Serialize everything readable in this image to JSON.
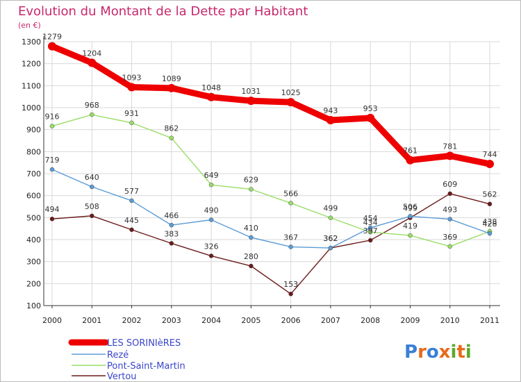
{
  "chart_data": {
    "type": "line",
    "title": "Evolution du Montant de la Dette par Habitant",
    "subtitle": "(en €)",
    "categories": [
      "2000",
      "2001",
      "2002",
      "2003",
      "2004",
      "2005",
      "2006",
      "2007",
      "2008",
      "2009",
      "2010",
      "2011"
    ],
    "ylim": [
      100,
      1300
    ],
    "yticks": [
      100,
      200,
      300,
      400,
      500,
      600,
      700,
      800,
      900,
      1000,
      1100,
      1200,
      1300
    ],
    "grid": true,
    "legend_position": "bottom-left",
    "series": [
      {
        "name": "LES SORINIèRES",
        "color": "#ee0000",
        "values": [
          1279,
          1204,
          1093,
          1089,
          1048,
          1031,
          1025,
          943,
          953,
          761,
          781,
          744
        ]
      },
      {
        "name": "Rezé",
        "color": "#5b9bd5",
        "values": [
          719,
          640,
          577,
          466,
          490,
          410,
          367,
          362,
          454,
          506,
          493,
          428
        ]
      },
      {
        "name": "Pont-Saint-Martin",
        "color": "#99dd66",
        "values": [
          916,
          968,
          931,
          862,
          649,
          629,
          566,
          499,
          434,
          419,
          369,
          438
        ]
      },
      {
        "name": "Vertou",
        "color": "#6b1a1a",
        "values": [
          494,
          508,
          445,
          383,
          326,
          280,
          153,
          362,
          397,
          499,
          609,
          562
        ]
      }
    ]
  },
  "brand": {
    "text": "Proxiti"
  }
}
